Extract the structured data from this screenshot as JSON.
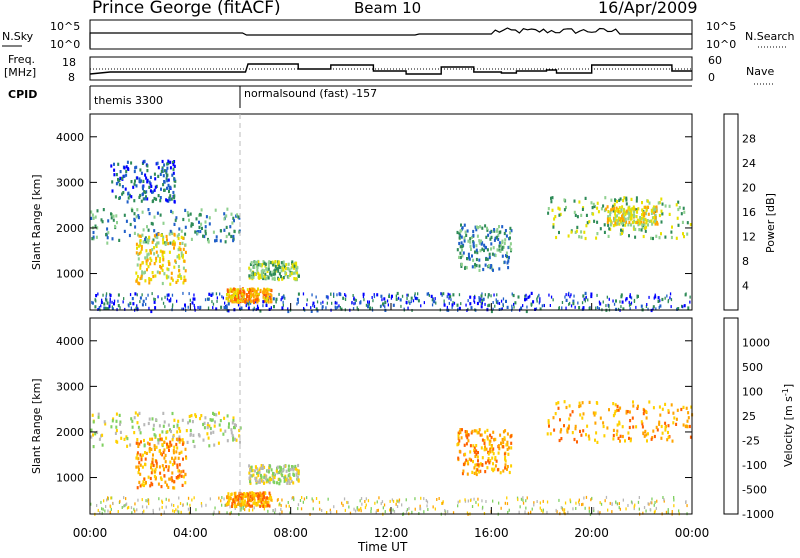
{
  "header": {
    "title": "Prince George (fitACF)",
    "beam": "Beam 10",
    "date": "16/Apr/2009"
  },
  "summary_panels": {
    "nsky_label": "N.Sky",
    "nsearch_label": "N.Search",
    "nsky_ticks": [
      "10^5",
      "10^0"
    ],
    "nsearch_ticks": [
      "10^5",
      "10^0"
    ],
    "freq_label_1": "Freq.",
    "freq_label_2": "[MHz]",
    "freq_ticks": [
      "18",
      "8"
    ],
    "nave_label": "Nave",
    "nave_ticks": [
      "60",
      "0"
    ],
    "cpid_label": "CPID",
    "cpid_segments": [
      {
        "label": "themis 3300",
        "start_hour": 0,
        "end_hour": 6.0
      },
      {
        "label": "normalsound (fast) -157",
        "start_hour": 6.0,
        "end_hour": 24
      }
    ]
  },
  "power_panel": {
    "ylabel": "Slant Range [km]",
    "yticks": [
      "4000",
      "3000",
      "2000",
      "1000"
    ],
    "colorbar_label": "Power [dB]",
    "colorbar_ticks": [
      "28",
      "24",
      "20",
      "16",
      "12",
      "8",
      "4"
    ],
    "colors": [
      "#0000ff",
      "#1f5fc8",
      "#2e8b57",
      "#8fd08f",
      "#e8e000",
      "#ffa500",
      "#ff6000",
      "#ff0000"
    ]
  },
  "velocity_panel": {
    "ylabel": "Slant Range [km]",
    "yticks": [
      "4000",
      "3000",
      "2000",
      "1000"
    ],
    "colorbar_label": "Velocity [m s^-1]",
    "colorbar_ticks": [
      "1000",
      "500",
      "100",
      "25",
      "-25",
      "-100",
      "-500",
      "-1000"
    ],
    "colors": [
      "#0000ff",
      "#2e8b57",
      "#7fd060",
      "#b8b8b8",
      "#ffd000",
      "#ffa500",
      "#ff6000",
      "#ff0000"
    ]
  },
  "xaxis": {
    "label": "Time UT",
    "ticks": [
      "00:00",
      "04:00",
      "08:00",
      "12:00",
      "16:00",
      "20:00",
      "00:00"
    ]
  },
  "chart_data": [
    {
      "type": "heatmap",
      "title": "Prince George (fitACF)",
      "xlabel": "",
      "ylabel": "Slant Range [km]",
      "xlim": [
        0,
        24
      ],
      "ylim": [
        200,
        4500
      ],
      "colorbar": "Power [dB]",
      "regions": [
        {
          "x": [
            0,
            6
          ],
          "y": [
            1700,
            2450
          ],
          "value": 12
        },
        {
          "x": [
            1.8,
            3.8
          ],
          "y": [
            800,
            1900
          ],
          "value": 18
        },
        {
          "x": [
            0.8,
            3.4
          ],
          "y": [
            2600,
            3500
          ],
          "value": 8
        },
        {
          "x": [
            6.3,
            8.3
          ],
          "y": [
            900,
            1300
          ],
          "value": 16
        },
        {
          "x": [
            5.4,
            7.2
          ],
          "y": [
            400,
            700
          ],
          "value": 24
        },
        {
          "x": [
            0,
            24
          ],
          "y": [
            200,
            600
          ],
          "value": 8
        },
        {
          "x": [
            14.6,
            16.8
          ],
          "y": [
            1100,
            2100
          ],
          "value": 12
        },
        {
          "x": [
            18.2,
            24
          ],
          "y": [
            1800,
            2700
          ],
          "value": 16
        },
        {
          "x": [
            20.5,
            22.6
          ],
          "y": [
            2100,
            2500
          ],
          "value": 20
        }
      ]
    },
    {
      "type": "heatmap",
      "title": "",
      "xlabel": "Time UT",
      "ylabel": "Slant Range [km]",
      "xlim": [
        0,
        24
      ],
      "ylim": [
        200,
        4500
      ],
      "colorbar": "Velocity [m s^-1]",
      "regions": [
        {
          "x": [
            0,
            6
          ],
          "y": [
            1700,
            2450
          ],
          "value": 0
        },
        {
          "x": [
            1.8,
            3.8
          ],
          "y": [
            800,
            1900
          ],
          "value": -300
        },
        {
          "x": [
            6.3,
            8.3
          ],
          "y": [
            900,
            1300
          ],
          "value": 0
        },
        {
          "x": [
            5.4,
            7.2
          ],
          "y": [
            400,
            700
          ],
          "value": -300
        },
        {
          "x": [
            14.6,
            16.8
          ],
          "y": [
            1100,
            2100
          ],
          "value": -150
        },
        {
          "x": [
            18.2,
            24
          ],
          "y": [
            1800,
            2700
          ],
          "value": -300
        }
      ]
    }
  ]
}
